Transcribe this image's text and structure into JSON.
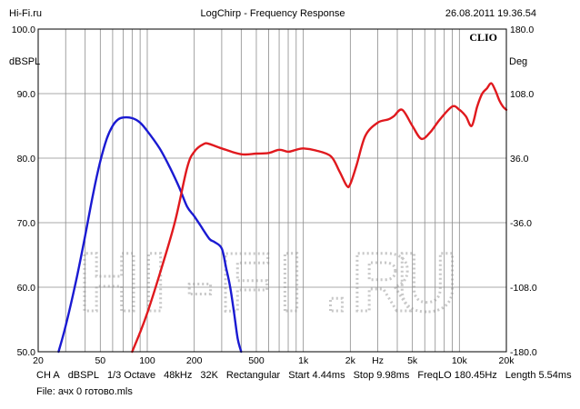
{
  "header": {
    "left": "Hi-Fi.ru",
    "center": "LogChirp - Frequency Response",
    "right": "26.08.2011 19.36.54"
  },
  "brand": "CLIO",
  "watermark": "HI-FI.RU",
  "footer": {
    "params": [
      "CH A",
      "dBSPL",
      "1/3 Octave",
      "48kHz",
      "32K",
      "Rectangular",
      "Start 4.44ms",
      "Stop 9.98ms",
      "FreqLO 180.45Hz",
      "Length 5.54ms"
    ],
    "file": "File: ачх 0 готово.mls"
  },
  "colors": {
    "background": "#ffffff",
    "grid": "#8c8c8c",
    "frame": "#000000",
    "series_blue": "#1a1ad2",
    "series_red": "#e0191e",
    "watermark": "#c8c8c8"
  },
  "chart_data": {
    "type": "line",
    "x_scale": "log",
    "xlim": [
      20,
      20000
    ],
    "ylim_left": [
      50,
      100
    ],
    "ylim_right": [
      -180,
      180
    ],
    "ylabel_left": "dBSPL",
    "ylabel_right": "Deg",
    "grid": true,
    "x_ticks": [
      {
        "value": 20,
        "label": "20"
      },
      {
        "value": 50,
        "label": "50"
      },
      {
        "value": 100,
        "label": "100"
      },
      {
        "value": 200,
        "label": "200"
      },
      {
        "value": 500,
        "label": "500"
      },
      {
        "value": 1000,
        "label": "1k"
      },
      {
        "value": 2000,
        "label": "2k"
      },
      {
        "value": 3000,
        "label": "Hz"
      },
      {
        "value": 5000,
        "label": "5k"
      },
      {
        "value": 10000,
        "label": "10k"
      },
      {
        "value": 20000,
        "label": "20k"
      }
    ],
    "y_ticks_left": [
      "100.0",
      "90.0",
      "80.0",
      "70.0",
      "60.0",
      "50.0"
    ],
    "y_ticks_right": [
      "180.0",
      "108.0",
      "36.0",
      "-36.0",
      "-108.0",
      "-180.0"
    ],
    "series": [
      {
        "color": "#1a1ad2",
        "x": [
          27,
          30,
          35,
          40,
          45,
          50,
          55,
          60,
          65,
          70,
          80,
          90,
          100,
          120,
          140,
          160,
          180,
          200,
          220,
          250,
          270,
          300,
          320,
          340,
          360,
          380,
          400
        ],
        "y": [
          50,
          54,
          61,
          68,
          74.5,
          79.5,
          83,
          85,
          86,
          86.3,
          86.2,
          85.5,
          84.2,
          81.5,
          78.5,
          75.5,
          72.5,
          71,
          69.5,
          67.5,
          67,
          66,
          63,
          60,
          56,
          52,
          50
        ]
      },
      {
        "color": "#e0191e",
        "x": [
          80,
          90,
          100,
          120,
          150,
          180,
          200,
          230,
          250,
          300,
          400,
          500,
          600,
          700,
          800,
          900,
          1000,
          1200,
          1500,
          1700,
          1900,
          2000,
          2200,
          2500,
          3000,
          3500,
          3800,
          4300,
          5000,
          5700,
          6500,
          7500,
          9000,
          10000,
          11000,
          12000,
          13000,
          14000,
          15000,
          16000,
          17000,
          18000,
          19000,
          20000
        ],
        "y": [
          50,
          53,
          56,
          62,
          70,
          78.5,
          81,
          82.2,
          82.2,
          81.5,
          80.6,
          80.7,
          80.8,
          81.3,
          81,
          81.3,
          81.5,
          81.2,
          80.3,
          78,
          75.7,
          76,
          79,
          83.5,
          85.5,
          86,
          86.5,
          87.5,
          85,
          83,
          84,
          86,
          88,
          87.5,
          86.5,
          85,
          88,
          90,
          90.8,
          91.6,
          90.5,
          89,
          88,
          87.5
        ]
      }
    ]
  }
}
